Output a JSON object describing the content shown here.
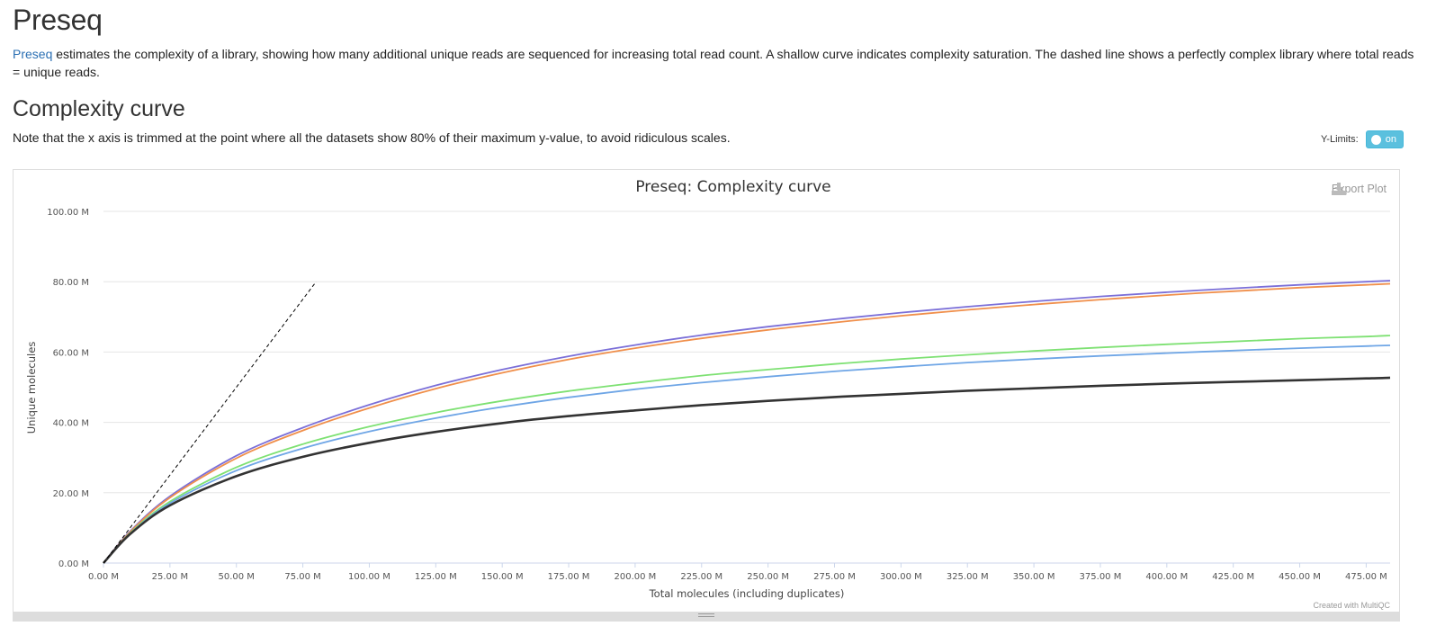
{
  "page": {
    "title": "Preseq",
    "intro_link": "Preseq",
    "intro_text": " estimates the complexity of a library, showing how many additional unique reads are sequenced for increasing total read count. A shallow curve indicates complexity saturation. The dashed line shows a perfectly complex library where total reads = unique reads.",
    "section_title": "Complexity curve",
    "note": "Note that the x axis is trimmed at the point where all the datasets show 80% of their maximum y-value, to avoid ridiculous scales.",
    "ylimits_label": "Y-Limits:",
    "ylimits_toggle": "on",
    "export_label": "Export Plot",
    "credit": "Created with MultiQC"
  },
  "chart_data": {
    "type": "line",
    "title": "Preseq: Complexity curve",
    "xlabel": "Total molecules (including duplicates)",
    "ylabel": "Unique molecules",
    "xlim": [
      0,
      484
    ],
    "ylim": [
      0,
      100
    ],
    "units": "M",
    "x_ticks": [
      "0.00 M",
      "25.00 M",
      "50.00 M",
      "75.00 M",
      "100.00 M",
      "125.00 M",
      "150.00 M",
      "175.00 M",
      "200.00 M",
      "225.00 M",
      "250.00 M",
      "275.00 M",
      "300.00 M",
      "325.00 M",
      "350.00 M",
      "375.00 M",
      "400.00 M",
      "425.00 M",
      "450.00 M",
      "475.00 M"
    ],
    "y_ticks": [
      "0.00 M",
      "20.00 M",
      "40.00 M",
      "60.00 M",
      "80.00 M",
      "100.00 M"
    ],
    "grid": true,
    "reference_line": {
      "style": "dashed",
      "color": "#000000",
      "x": [
        0,
        80
      ],
      "y": [
        0,
        80
      ]
    },
    "series": [
      {
        "color": "#7b6fd8",
        "x": [
          0,
          10,
          25,
          50,
          75,
          100,
          125,
          150,
          175,
          200,
          225,
          250,
          275,
          300,
          325,
          350,
          375,
          400,
          425,
          450,
          475,
          484
        ],
        "y": [
          0,
          9,
          19,
          30.5,
          38.5,
          45,
          50.5,
          55,
          58.8,
          62,
          64.8,
          67.2,
          69.3,
          71.2,
          72.9,
          74.4,
          75.8,
          77,
          78.1,
          79.1,
          80,
          80.3
        ]
      },
      {
        "color": "#f08f4b",
        "x": [
          0,
          10,
          25,
          50,
          75,
          100,
          125,
          150,
          175,
          200,
          225,
          250,
          275,
          300,
          325,
          350,
          375,
          400,
          425,
          450,
          475,
          484
        ],
        "y": [
          0,
          8.8,
          18.6,
          29.8,
          37.7,
          44.1,
          49.6,
          54.1,
          57.9,
          61.1,
          63.9,
          66.3,
          68.4,
          70.3,
          72,
          73.5,
          74.9,
          76.2,
          77.3,
          78.3,
          79.1,
          79.4
        ]
      },
      {
        "color": "#7ee173",
        "x": [
          0,
          10,
          25,
          50,
          75,
          100,
          125,
          150,
          175,
          200,
          225,
          250,
          275,
          300,
          325,
          350,
          375,
          400,
          425,
          450,
          475,
          484
        ],
        "y": [
          0,
          8.5,
          17.5,
          27.2,
          33.8,
          38.8,
          42.8,
          46.1,
          48.9,
          51.2,
          53.3,
          55,
          56.6,
          58,
          59.2,
          60.3,
          61.3,
          62.2,
          63,
          63.8,
          64.4,
          64.7
        ]
      },
      {
        "color": "#6fa6e6",
        "x": [
          0,
          10,
          25,
          50,
          75,
          100,
          125,
          150,
          175,
          200,
          225,
          250,
          275,
          300,
          325,
          350,
          375,
          400,
          425,
          450,
          475,
          484
        ],
        "y": [
          0,
          8.3,
          17,
          26.3,
          32.6,
          37.4,
          41.2,
          44.4,
          47.1,
          49.4,
          51.3,
          53,
          54.5,
          55.8,
          57,
          58,
          58.9,
          59.7,
          60.4,
          61.1,
          61.7,
          61.9
        ]
      },
      {
        "color": "#333333",
        "x": [
          0,
          10,
          25,
          50,
          75,
          100,
          125,
          150,
          175,
          200,
          225,
          250,
          275,
          300,
          325,
          350,
          375,
          400,
          425,
          450,
          475,
          484
        ],
        "y": [
          0,
          8.2,
          16.4,
          24.7,
          30.2,
          34.2,
          37.3,
          39.8,
          41.8,
          43.4,
          44.9,
          46.1,
          47.2,
          48.1,
          49,
          49.7,
          50.4,
          51,
          51.5,
          52,
          52.5,
          52.7
        ]
      }
    ]
  }
}
